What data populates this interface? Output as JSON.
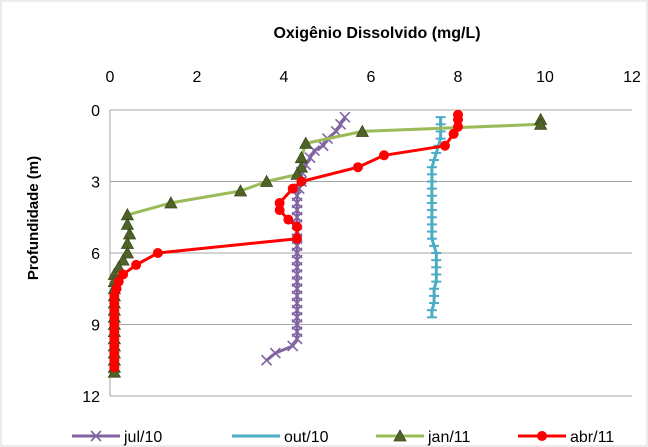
{
  "chart_data": {
    "type": "line",
    "title": "Oxigênio Dissolvido  (mg/L)",
    "xlabel": "",
    "ylabel": "Profundidade (m)",
    "x_axis_position": "top",
    "y_axis_inverted": true,
    "xlim": [
      0,
      12
    ],
    "ylim": [
      0,
      12
    ],
    "x_ticks": [
      "0",
      "2",
      "4",
      "6",
      "8",
      "10",
      "12"
    ],
    "y_ticks": [
      "0",
      "3",
      "6",
      "9",
      "12"
    ],
    "grid": "horizontal",
    "legend_position": "bottom",
    "series": [
      {
        "name": "jul/10",
        "color": "#8064A2",
        "marker": "x",
        "points": [
          [
            5.4,
            0.3
          ],
          [
            5.3,
            0.6
          ],
          [
            5.2,
            0.9
          ],
          [
            5.0,
            1.2
          ],
          [
            4.9,
            1.5
          ],
          [
            4.7,
            1.7
          ],
          [
            4.6,
            2.0
          ],
          [
            4.5,
            2.3
          ],
          [
            4.4,
            2.6
          ],
          [
            4.4,
            3.0
          ],
          [
            4.35,
            3.3
          ],
          [
            4.3,
            3.6
          ],
          [
            4.3,
            3.9
          ],
          [
            4.3,
            4.2
          ],
          [
            4.3,
            4.5
          ],
          [
            4.3,
            4.8
          ],
          [
            4.3,
            5.1
          ],
          [
            4.3,
            5.4
          ],
          [
            4.3,
            5.7
          ],
          [
            4.3,
            6.0
          ],
          [
            4.3,
            6.3
          ],
          [
            4.3,
            6.6
          ],
          [
            4.3,
            6.9
          ],
          [
            4.3,
            7.2
          ],
          [
            4.3,
            7.5
          ],
          [
            4.3,
            7.8
          ],
          [
            4.3,
            8.1
          ],
          [
            4.3,
            8.4
          ],
          [
            4.3,
            8.7
          ],
          [
            4.3,
            9.0
          ],
          [
            4.3,
            9.3
          ],
          [
            4.3,
            9.6
          ],
          [
            4.2,
            9.9
          ],
          [
            3.8,
            10.2
          ],
          [
            3.6,
            10.5
          ]
        ]
      },
      {
        "name": "out/10",
        "color": "#4BACC6",
        "marker": "dash",
        "points": [
          [
            7.6,
            0.3
          ],
          [
            7.6,
            0.6
          ],
          [
            7.6,
            0.9
          ],
          [
            7.6,
            1.2
          ],
          [
            7.55,
            1.5
          ],
          [
            7.5,
            1.8
          ],
          [
            7.45,
            2.1
          ],
          [
            7.4,
            2.4
          ],
          [
            7.4,
            2.7
          ],
          [
            7.4,
            3.0
          ],
          [
            7.4,
            3.3
          ],
          [
            7.4,
            3.6
          ],
          [
            7.4,
            3.9
          ],
          [
            7.4,
            4.2
          ],
          [
            7.4,
            4.5
          ],
          [
            7.4,
            4.8
          ],
          [
            7.4,
            5.1
          ],
          [
            7.4,
            5.4
          ],
          [
            7.45,
            5.7
          ],
          [
            7.5,
            6.0
          ],
          [
            7.5,
            6.3
          ],
          [
            7.5,
            6.6
          ],
          [
            7.5,
            6.9
          ],
          [
            7.5,
            7.2
          ],
          [
            7.45,
            7.5
          ],
          [
            7.45,
            7.8
          ],
          [
            7.45,
            8.1
          ],
          [
            7.4,
            8.4
          ],
          [
            7.4,
            8.7
          ]
        ]
      },
      {
        "name": "jan/11",
        "color": "#9BBB59",
        "marker": "triangle",
        "points": [
          [
            9.9,
            0.4
          ],
          [
            9.9,
            0.6
          ],
          [
            5.8,
            0.9
          ],
          [
            4.5,
            1.4
          ],
          [
            4.4,
            2.0
          ],
          [
            4.4,
            2.4
          ],
          [
            4.3,
            2.7
          ],
          [
            3.6,
            3.0
          ],
          [
            3.0,
            3.4
          ],
          [
            1.4,
            3.9
          ],
          [
            0.4,
            4.4
          ],
          [
            0.4,
            4.8
          ],
          [
            0.45,
            5.2
          ],
          [
            0.4,
            5.6
          ],
          [
            0.4,
            6.0
          ],
          [
            0.3,
            6.3
          ],
          [
            0.2,
            6.6
          ],
          [
            0.1,
            6.9
          ],
          [
            0.1,
            7.2
          ],
          [
            0.1,
            7.5
          ],
          [
            0.1,
            7.8
          ],
          [
            0.1,
            8.1
          ],
          [
            0.1,
            8.4
          ],
          [
            0.1,
            8.7
          ],
          [
            0.1,
            9.0
          ],
          [
            0.1,
            9.3
          ],
          [
            0.1,
            9.6
          ],
          [
            0.1,
            9.9
          ],
          [
            0.1,
            10.2
          ],
          [
            0.1,
            10.5
          ],
          [
            0.1,
            10.8
          ],
          [
            0.1,
            11.0
          ]
        ]
      },
      {
        "name": "abr/11",
        "color": "#FF0000",
        "marker": "circle",
        "points": [
          [
            8.0,
            0.2
          ],
          [
            8.0,
            0.4
          ],
          [
            8.0,
            0.7
          ],
          [
            7.9,
            1.0
          ],
          [
            7.7,
            1.5
          ],
          [
            6.3,
            1.9
          ],
          [
            5.7,
            2.4
          ],
          [
            4.4,
            3.0
          ],
          [
            4.2,
            3.3
          ],
          [
            3.9,
            3.9
          ],
          [
            3.9,
            4.2
          ],
          [
            4.1,
            4.6
          ],
          [
            4.3,
            4.9
          ],
          [
            4.3,
            5.4
          ],
          [
            1.1,
            6.0
          ],
          [
            0.6,
            6.5
          ],
          [
            0.3,
            6.9
          ],
          [
            0.2,
            7.2
          ],
          [
            0.15,
            7.5
          ],
          [
            0.1,
            7.8
          ],
          [
            0.1,
            8.1
          ],
          [
            0.1,
            8.4
          ],
          [
            0.1,
            8.7
          ],
          [
            0.1,
            9.0
          ],
          [
            0.1,
            9.3
          ],
          [
            0.1,
            9.6
          ],
          [
            0.1,
            9.9
          ],
          [
            0.1,
            10.2
          ],
          [
            0.1,
            10.5
          ],
          [
            0.1,
            10.8
          ]
        ]
      }
    ]
  }
}
